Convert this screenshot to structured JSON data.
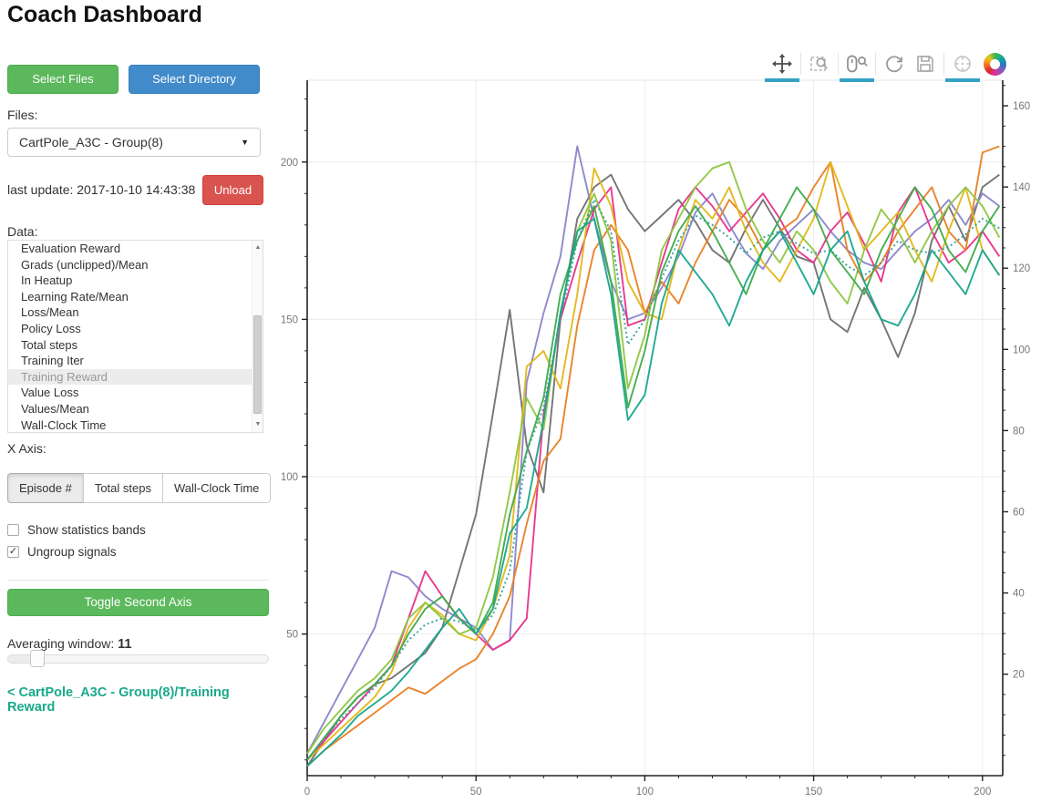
{
  "app": {
    "title": "Coach Dashboard"
  },
  "sidebar": {
    "select_files_label": "Select Files",
    "select_directory_label": "Select Directory",
    "files_label": "Files:",
    "files_dropdown_value": "CartPole_A3C - Group(8)",
    "last_update": "last update: 2017-10-10 14:43:38",
    "unload_label": "Unload",
    "data_label": "Data:",
    "data_list": {
      "items": [
        "Evaluation Reward",
        "Grads (unclipped)/Mean",
        "In Heatup",
        "Learning Rate/Mean",
        "Loss/Mean",
        "Policy Loss",
        "Total steps",
        "Training Iter",
        "Training Reward",
        "Value Loss",
        "Values/Mean",
        "Wall-Clock Time"
      ],
      "selected": "Training Reward"
    },
    "x_axis_label": "X Axis:",
    "x_axis_options": [
      "Episode #",
      "Total steps",
      "Wall-Clock Time"
    ],
    "x_axis_selected": "Episode #",
    "checkboxes": [
      {
        "label": "Show statistics bands",
        "checked": false
      },
      {
        "label": "Ungroup signals",
        "checked": true
      }
    ],
    "toggle_second_axis_label": "Toggle Second Axis",
    "averaging_label": "Averaging window:",
    "averaging_value": "11",
    "breadcrumb_link": "< CartPole_A3C - Group(8)/Training Reward"
  },
  "toolbar": {
    "tools": [
      {
        "name": "pan-tool-icon",
        "active": true
      },
      {
        "name": "box-zoom-icon",
        "active": false
      },
      {
        "name": "wheel-zoom-icon",
        "active": true
      },
      {
        "name": "reset-icon",
        "active": false
      },
      {
        "name": "save-icon",
        "active": false
      },
      {
        "name": "hover-icon",
        "active": true
      },
      {
        "name": "bokeh-logo",
        "active": false
      }
    ]
  },
  "chart_data": {
    "type": "line",
    "title": "",
    "xlabel": "",
    "ylabel": "",
    "grid": true,
    "legend": "none",
    "x_axis": {
      "ticks": [
        0,
        50,
        100,
        150,
        200
      ],
      "minor_step": 10,
      "range": [
        0,
        206
      ]
    },
    "y_axis_left": {
      "ticks": [
        50,
        100,
        150,
        200
      ],
      "minor_step": 10,
      "range": [
        5,
        226
      ]
    },
    "y_axis_right": {
      "ticks": [
        20,
        40,
        60,
        80,
        100,
        120,
        140,
        160
      ],
      "minor_step": 5,
      "range": [
        -5,
        166.3
      ]
    },
    "x": [
      0,
      5,
      10,
      15,
      20,
      25,
      30,
      35,
      40,
      45,
      50,
      55,
      60,
      65,
      70,
      75,
      80,
      85,
      90,
      95,
      100,
      105,
      110,
      115,
      120,
      125,
      130,
      135,
      140,
      145,
      150,
      155,
      160,
      165,
      170,
      175,
      180,
      185,
      190,
      195,
      200,
      205
    ],
    "series": [
      {
        "name": "worker-0-gray",
        "color": "#6e6e6e",
        "dash": "none",
        "values": [
          8,
          16,
          24,
          30,
          34,
          36,
          40,
          44,
          52,
          70,
          88,
          120,
          153,
          110,
          95,
          150,
          182,
          192,
          196,
          185,
          178,
          183,
          188,
          181,
          172,
          168,
          179,
          188,
          179,
          170,
          168,
          150,
          146,
          160,
          150,
          138,
          152,
          175,
          186,
          175,
          192,
          196
        ]
      },
      {
        "name": "worker-1-purple",
        "color": "#8884c9",
        "dash": "none",
        "values": [
          12,
          22,
          32,
          42,
          52,
          70,
          68,
          62,
          58,
          55,
          52,
          45,
          48,
          130,
          152,
          170,
          205,
          182,
          162,
          150,
          152,
          160,
          170,
          184,
          190,
          180,
          171,
          166,
          175,
          180,
          185,
          178,
          172,
          168,
          166,
          172,
          178,
          182,
          188,
          180,
          190,
          186
        ]
      },
      {
        "name": "worker-2-magenta",
        "color": "#e8308a",
        "dash": "none",
        "values": [
          10,
          16,
          22,
          28,
          34,
          40,
          55,
          70,
          62,
          55,
          50,
          45,
          48,
          55,
          120,
          150,
          168,
          185,
          192,
          148,
          150,
          168,
          185,
          192,
          186,
          178,
          184,
          190,
          182,
          172,
          168,
          178,
          184,
          174,
          162,
          184,
          192,
          178,
          168,
          172,
          178,
          170
        ]
      },
      {
        "name": "worker-3-orange",
        "color": "#e87e22",
        "dash": "none",
        "values": [
          8,
          13,
          17,
          21,
          25,
          29,
          33,
          31,
          35,
          39,
          42,
          50,
          62,
          85,
          105,
          112,
          148,
          172,
          180,
          172,
          152,
          162,
          155,
          168,
          178,
          188,
          182,
          172,
          178,
          182,
          192,
          200,
          172,
          162,
          168,
          178,
          185,
          192,
          178,
          172,
          203,
          205
        ]
      },
      {
        "name": "worker-4-gold",
        "color": "#e2b616",
        "dash": "none",
        "values": [
          10,
          15,
          20,
          25,
          30,
          38,
          52,
          60,
          56,
          50,
          48,
          58,
          75,
          135,
          140,
          128,
          158,
          198,
          186,
          162,
          152,
          150,
          172,
          188,
          182,
          192,
          178,
          168,
          162,
          172,
          182,
          200,
          186,
          172,
          178,
          184,
          172,
          162,
          178,
          192,
          172,
          164
        ]
      },
      {
        "name": "worker-5-yellowgreen",
        "color": "#8dc63f",
        "dash": "none",
        "values": [
          12,
          20,
          26,
          32,
          36,
          42,
          55,
          60,
          55,
          50,
          52,
          68,
          95,
          125,
          115,
          152,
          178,
          190,
          175,
          128,
          145,
          172,
          182,
          192,
          198,
          200,
          185,
          175,
          168,
          178,
          172,
          162,
          155,
          172,
          185,
          178,
          168,
          178,
          186,
          192,
          186,
          176
        ]
      },
      {
        "name": "worker-6-green",
        "color": "#3cab47",
        "dash": "none",
        "values": [
          10,
          17,
          24,
          30,
          34,
          40,
          50,
          58,
          62,
          55,
          50,
          60,
          88,
          108,
          125,
          158,
          175,
          186,
          162,
          122,
          140,
          165,
          178,
          186,
          178,
          168,
          158,
          172,
          182,
          192,
          185,
          172,
          165,
          158,
          172,
          182,
          192,
          185,
          172,
          165,
          178,
          186
        ]
      },
      {
        "name": "worker-7-teal",
        "color": "#16a58c",
        "dash": "none",
        "values": [
          8,
          13,
          18,
          24,
          28,
          32,
          38,
          45,
          52,
          58,
          50,
          58,
          82,
          90,
          118,
          152,
          178,
          182,
          158,
          118,
          126,
          155,
          172,
          165,
          158,
          148,
          162,
          172,
          178,
          168,
          158,
          172,
          178,
          162,
          150,
          148,
          158,
          172,
          165,
          158,
          172,
          164
        ]
      },
      {
        "name": "mean-dashed",
        "color": "#2f9e9e",
        "dash": "2 3",
        "values": [
          10,
          17,
          23,
          28,
          33,
          40,
          48,
          53,
          55,
          54,
          51,
          56,
          70,
          108,
          122,
          150,
          175,
          188,
          178,
          142,
          150,
          163,
          175,
          183,
          180,
          176,
          171,
          176,
          178,
          174,
          171,
          172,
          167,
          164,
          168,
          175,
          172,
          171,
          173,
          177,
          182,
          179
        ]
      }
    ]
  }
}
